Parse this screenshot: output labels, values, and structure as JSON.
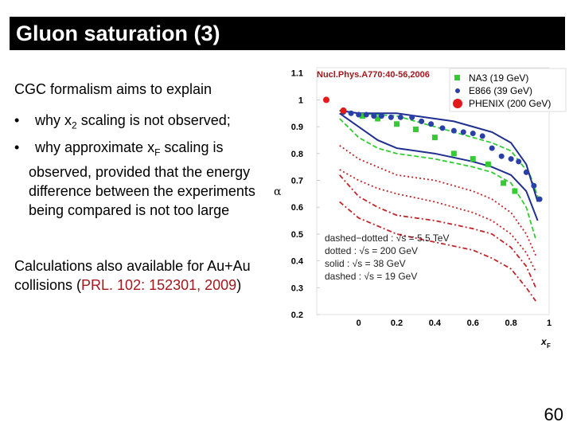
{
  "slide": {
    "title": "Gluon saturation (3)",
    "intro": "CGC formalism aims to explain",
    "bullet1_prefix": "why x",
    "bullet1_sub": "2",
    "bullet1_suffix": " scaling is not observed;",
    "bullet2_prefix": "why approximate x",
    "bullet2_sub": "F",
    "bullet2_suffix": " scaling is observed, provided that the energy difference between the experiments being compared is not too large",
    "calc_text": "Calculations also available for Au+Au collisions (",
    "calc_ref": "PRL. 102: 152301, 2009",
    "calc_close": ")",
    "page_number": "60"
  },
  "chart_data": {
    "type": "scatter",
    "reference": "Nucl.Phys.A770:40-56,2006",
    "ylabel": "α",
    "xlabel": "x",
    "xlabel_sub": "F",
    "xlim": [
      -0.22,
      1.0
    ],
    "ylim": [
      0.2,
      1.12
    ],
    "x_ticks": [
      "0",
      "0.2",
      "0.4",
      "0.6",
      "0.8",
      "1"
    ],
    "y_ticks": [
      "0.2",
      "0.3",
      "0.4",
      "0.5",
      "0.6",
      "0.7",
      "0.8",
      "0.9",
      "1",
      "1.1"
    ],
    "legend": [
      {
        "label": "NA3 (19 GeV)",
        "color": "#33cc33",
        "marker": "square"
      },
      {
        "label": "E866 (39 GeV)",
        "color": "#2a3fa8",
        "marker": "circle"
      },
      {
        "label": "PHENIX (200 GeV)",
        "color": "#e21a1a",
        "marker": "big-circle"
      }
    ],
    "curve_legend": [
      "dashed−dotted : √s = 5.5 TeV",
      "dotted : √s = 200 GeV",
      "solid : √s = 38 GeV",
      "dashed : √s = 19 GeV"
    ],
    "series": [
      {
        "name": "NA3 (19 GeV)",
        "color": "#33cc33",
        "marker": "square",
        "x": [
          0.02,
          0.1,
          0.2,
          0.3,
          0.4,
          0.5,
          0.6,
          0.68,
          0.76,
          0.82
        ],
        "y": [
          0.94,
          0.93,
          0.91,
          0.89,
          0.86,
          0.8,
          0.78,
          0.76,
          0.69,
          0.66
        ]
      },
      {
        "name": "E866 (39 GeV)",
        "color": "#2a3fa8",
        "marker": "circle",
        "x": [
          -0.08,
          -0.04,
          0.0,
          0.04,
          0.08,
          0.12,
          0.17,
          0.22,
          0.28,
          0.33,
          0.38,
          0.44,
          0.5,
          0.55,
          0.6,
          0.65,
          0.7,
          0.75,
          0.8,
          0.84,
          0.88,
          0.92,
          0.95
        ],
        "y": [
          0.955,
          0.95,
          0.945,
          0.945,
          0.94,
          0.94,
          0.935,
          0.935,
          0.935,
          0.92,
          0.91,
          0.895,
          0.885,
          0.88,
          0.875,
          0.865,
          0.82,
          0.79,
          0.78,
          0.77,
          0.73,
          0.68,
          0.63
        ]
      },
      {
        "name": "PHENIX (200 GeV)",
        "color": "#e21a1a",
        "marker": "big-circle",
        "x": [
          -0.17,
          -0.08
        ],
        "y": [
          1.0,
          0.96
        ]
      }
    ],
    "curves": [
      {
        "style": "dashed",
        "color": "#33cc33",
        "x": [
          -0.1,
          0.0,
          0.2,
          0.4,
          0.5,
          0.6,
          0.7,
          0.8,
          0.9,
          0.95
        ],
        "y": [
          0.96,
          0.95,
          0.94,
          0.9,
          0.88,
          0.86,
          0.84,
          0.81,
          0.72,
          0.62
        ]
      },
      {
        "style": "solid",
        "color": "#1f2f8f",
        "x": [
          -0.1,
          0.0,
          0.2,
          0.4,
          0.5,
          0.6,
          0.7,
          0.8,
          0.88,
          0.94
        ],
        "y": [
          0.96,
          0.95,
          0.95,
          0.93,
          0.92,
          0.9,
          0.88,
          0.84,
          0.76,
          0.62
        ]
      },
      {
        "style": "solid",
        "color": "#1f2f8f",
        "x": [
          -0.1,
          0.0,
          0.1,
          0.2,
          0.4,
          0.6,
          0.7,
          0.8,
          0.88,
          0.94
        ],
        "y": [
          0.95,
          0.9,
          0.85,
          0.82,
          0.8,
          0.77,
          0.75,
          0.72,
          0.66,
          0.55
        ]
      },
      {
        "style": "dashed",
        "color": "#33cc33",
        "x": [
          -0.1,
          0.0,
          0.1,
          0.2,
          0.4,
          0.6,
          0.7,
          0.8,
          0.88,
          0.93
        ],
        "y": [
          0.93,
          0.86,
          0.82,
          0.8,
          0.78,
          0.75,
          0.73,
          0.69,
          0.6,
          0.48
        ]
      },
      {
        "style": "dotted",
        "color": "#c0262a",
        "x": [
          -0.1,
          0.0,
          0.1,
          0.2,
          0.4,
          0.6,
          0.7,
          0.8,
          0.88,
          0.93
        ],
        "y": [
          0.83,
          0.78,
          0.75,
          0.72,
          0.7,
          0.66,
          0.63,
          0.58,
          0.5,
          0.42
        ]
      },
      {
        "style": "dotted",
        "color": "#c0262a",
        "x": [
          -0.1,
          0.0,
          0.1,
          0.2,
          0.4,
          0.6,
          0.7,
          0.8,
          0.88,
          0.93
        ],
        "y": [
          0.74,
          0.7,
          0.67,
          0.65,
          0.62,
          0.58,
          0.55,
          0.5,
          0.43,
          0.36
        ]
      },
      {
        "style": "dashdot",
        "color": "#c0262a",
        "x": [
          -0.1,
          0.0,
          0.1,
          0.2,
          0.4,
          0.6,
          0.7,
          0.8,
          0.88,
          0.93
        ],
        "y": [
          0.72,
          0.64,
          0.6,
          0.57,
          0.55,
          0.52,
          0.5,
          0.45,
          0.38,
          0.3
        ]
      },
      {
        "style": "dashdot",
        "color": "#c0262a",
        "x": [
          -0.1,
          0.0,
          0.1,
          0.2,
          0.4,
          0.6,
          0.7,
          0.8,
          0.88,
          0.93
        ],
        "y": [
          0.62,
          0.56,
          0.53,
          0.5,
          0.47,
          0.44,
          0.41,
          0.37,
          0.3,
          0.25
        ]
      }
    ]
  }
}
